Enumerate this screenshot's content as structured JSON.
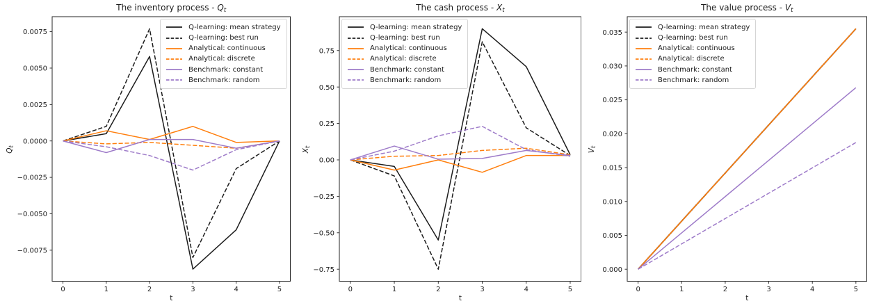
{
  "figure": {
    "background": "#ffffff",
    "text_color": "#1c1c1c",
    "axis_color": "#262626",
    "legend_border_color": "#d5d5d5"
  },
  "colors": {
    "qlearning": "#1c1c1c",
    "analytical": "#ff7f0e",
    "benchmark": "#9e7bc9"
  },
  "chart_data": [
    {
      "type": "line",
      "title_prefix": "The inventory process - ",
      "title_var": "Q",
      "title_sub": "t",
      "ylabel_var": "Q",
      "ylabel_sub": "t",
      "xlabel": "t",
      "grid": false,
      "legend_position": "upper right",
      "x": [
        0,
        1,
        2,
        3,
        4,
        5
      ],
      "xlim": [
        -0.25,
        5.25
      ],
      "ylim": [
        -0.00963,
        0.00853
      ],
      "xticks": [
        0,
        1,
        2,
        3,
        4,
        5
      ],
      "xtick_labels": [
        "0",
        "1",
        "2",
        "3",
        "4",
        "5"
      ],
      "yticks": [
        0.0075,
        0.005,
        0.0025,
        0,
        -0.0025,
        -0.005,
        -0.0075
      ],
      "ytick_labels": [
        "0.0075",
        "0.0050",
        "0.0025",
        "0.0000",
        "−0.0025",
        "−0.0050",
        "−0.0075"
      ],
      "series": [
        {
          "name": "Q-learning: mean strategy",
          "color": "#1c1c1c",
          "dash": false,
          "values": [
            0,
            0.0005,
            0.0058,
            -0.0088,
            -0.0061,
            0
          ]
        },
        {
          "name": "Q-learning: best run",
          "color": "#1c1c1c",
          "dash": true,
          "values": [
            0,
            0.001,
            0.0077,
            -0.008,
            -0.0019,
            0
          ]
        },
        {
          "name": "Analytical: continuous",
          "color": "#ff7f0e",
          "dash": false,
          "values": [
            0,
            0.0007,
            0.0001,
            0.001,
            -0.0001,
            0
          ]
        },
        {
          "name": "Analytical: discrete",
          "color": "#ff7f0e",
          "dash": true,
          "values": [
            0,
            -0.0002,
            -0.0001,
            -0.0003,
            -0.0005,
            0
          ]
        },
        {
          "name": "Benchmark: constant",
          "color": "#9e7bc9",
          "dash": false,
          "values": [
            0,
            -0.0008,
            0.0001,
            0.0001,
            -0.0005,
            0
          ]
        },
        {
          "name": "Benchmark: random",
          "color": "#9e7bc9",
          "dash": true,
          "values": [
            0,
            -0.0004,
            -0.001,
            -0.002,
            -0.0006,
            0
          ]
        }
      ]
    },
    {
      "type": "line",
      "title_prefix": "The cash process - ",
      "title_var": "X",
      "title_sub": "t",
      "ylabel_var": "X",
      "ylabel_sub": "t",
      "xlabel": "t",
      "grid": false,
      "legend_position": "upper left",
      "x": [
        0,
        1,
        2,
        3,
        4,
        5
      ],
      "xlim": [
        -0.25,
        5.25
      ],
      "ylim": [
        -0.8325,
        0.9825
      ],
      "xticks": [
        0,
        1,
        2,
        3,
        4,
        5
      ],
      "xtick_labels": [
        "0",
        "1",
        "2",
        "3",
        "4",
        "5"
      ],
      "yticks": [
        0.75,
        0.5,
        0.25,
        0,
        -0.25,
        -0.5,
        -0.75
      ],
      "ytick_labels": [
        "0.75",
        "0.50",
        "0.25",
        "0.00",
        "−0.25",
        "−0.50",
        "−0.75"
      ],
      "series": [
        {
          "name": "Q-learning: mean strategy",
          "color": "#1c1c1c",
          "dash": false,
          "values": [
            0,
            -0.045,
            -0.55,
            0.9,
            0.64,
            0.035
          ]
        },
        {
          "name": "Q-learning: best run",
          "color": "#1c1c1c",
          "dash": true,
          "values": [
            0,
            -0.11,
            -0.75,
            0.81,
            0.22,
            0.03
          ]
        },
        {
          "name": "Analytical: continuous",
          "color": "#ff7f0e",
          "dash": false,
          "values": [
            0,
            -0.07,
            0,
            -0.085,
            0.03,
            0.03
          ]
        },
        {
          "name": "Analytical: discrete",
          "color": "#ff7f0e",
          "dash": true,
          "values": [
            0,
            0.025,
            0.03,
            0.065,
            0.08,
            0.035
          ]
        },
        {
          "name": "Benchmark: constant",
          "color": "#9e7bc9",
          "dash": false,
          "values": [
            0,
            0.095,
            0.005,
            0.01,
            0.065,
            0.03
          ]
        },
        {
          "name": "Benchmark: random",
          "color": "#9e7bc9",
          "dash": true,
          "values": [
            0,
            0.06,
            0.165,
            0.23,
            0.07,
            0.025
          ]
        }
      ]
    },
    {
      "type": "line",
      "title_prefix": "The value process - ",
      "title_var": "V",
      "title_sub": "t",
      "ylabel_var": "V",
      "ylabel_sub": "t",
      "xlabel": "t",
      "grid": false,
      "legend_position": "upper left",
      "x": [
        0,
        1,
        2,
        3,
        4,
        5
      ],
      "xlim": [
        -0.25,
        5.25
      ],
      "ylim": [
        -0.001775,
        0.037275
      ],
      "xticks": [
        0,
        1,
        2,
        3,
        4,
        5
      ],
      "xtick_labels": [
        "0",
        "1",
        "2",
        "3",
        "4",
        "5"
      ],
      "yticks": [
        0.035,
        0.03,
        0.025,
        0.02,
        0.015,
        0.01,
        0.005,
        0
      ],
      "ytick_labels": [
        "0.035",
        "0.030",
        "0.025",
        "0.020",
        "0.015",
        "0.010",
        "0.005",
        "0.000"
      ],
      "series": [
        {
          "name": "Q-learning: mean strategy",
          "color": "#1c1c1c",
          "dash": false,
          "lw": 1.8,
          "values": [
            0,
            0.0071,
            0.0142,
            0.0213,
            0.0284,
            0.0355
          ]
        },
        {
          "name": "Q-learning: best run",
          "color": "#1c1c1c",
          "dash": true,
          "values": [
            0,
            0.0071,
            0.0142,
            0.0213,
            0.0284,
            0.0355
          ]
        },
        {
          "name": "Analytical: continuous",
          "color": "#ff7f0e",
          "dash": false,
          "values": [
            0,
            0.0071,
            0.0142,
            0.0213,
            0.0284,
            0.0355
          ]
        },
        {
          "name": "Analytical: discrete",
          "color": "#ff7f0e",
          "dash": true,
          "values": [
            0,
            0.0071,
            0.0142,
            0.0213,
            0.0284,
            0.0355
          ]
        },
        {
          "name": "Benchmark: constant",
          "color": "#9e7bc9",
          "dash": false,
          "values": [
            0,
            0.00536,
            0.01072,
            0.01608,
            0.02144,
            0.0268
          ]
        },
        {
          "name": "Benchmark: random",
          "color": "#9e7bc9",
          "dash": true,
          "values": [
            0,
            0.00374,
            0.00748,
            0.01122,
            0.01496,
            0.0187
          ]
        }
      ]
    }
  ]
}
